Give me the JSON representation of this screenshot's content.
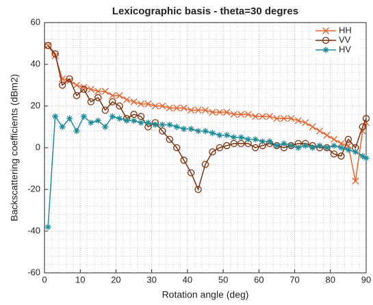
{
  "chart_data": {
    "type": "line",
    "title": "Lexicographic basis - theta=30 degres",
    "x_label": "Rotation angle (deg)",
    "y_label": "Backscattering coefficients (dBm2)",
    "x": [
      1,
      3,
      5,
      7,
      9,
      11,
      13,
      15,
      17,
      19,
      21,
      23,
      25,
      27,
      29,
      31,
      33,
      35,
      37,
      39,
      41,
      43,
      45,
      47,
      49,
      51,
      53,
      55,
      57,
      59,
      61,
      63,
      65,
      67,
      69,
      71,
      73,
      75,
      77,
      79,
      81,
      83,
      85,
      87,
      89,
      90
    ],
    "series": [
      {
        "name": "HH",
        "color": "#e8622c",
        "marker": "x",
        "values": [
          49,
          44,
          33,
          32,
          30,
          29,
          28,
          27,
          27,
          25,
          25,
          23,
          22,
          21,
          21,
          20,
          20,
          19,
          19,
          19,
          18,
          18,
          18,
          17,
          17,
          17,
          16,
          16,
          16,
          15,
          15,
          15,
          14,
          14,
          14,
          13,
          12,
          10,
          8,
          6,
          4,
          2,
          1,
          -16,
          8,
          12
        ]
      },
      {
        "name": "VV",
        "color": "#7a2e0a",
        "marker": "o",
        "values": [
          49,
          45,
          30,
          33,
          25,
          28,
          22,
          24,
          18,
          22,
          20,
          14,
          16,
          15,
          10,
          12,
          8,
          4,
          0,
          -6,
          -12,
          -20,
          -8,
          -2,
          0,
          1,
          2,
          2,
          2,
          0,
          1,
          2,
          1,
          0,
          1,
          2,
          2,
          1,
          0,
          0,
          -3,
          -4,
          4,
          0,
          10,
          14
        ]
      },
      {
        "name": "HV",
        "color": "#1f8c99",
        "marker": "*",
        "values": [
          -38,
          15,
          10,
          14,
          8,
          15,
          12,
          13,
          10,
          15,
          14,
          13,
          13,
          12,
          12,
          11,
          11,
          11,
          10,
          9,
          9,
          8,
          8,
          7,
          6,
          6,
          5,
          5,
          4,
          4,
          3,
          3,
          1,
          2,
          1,
          0,
          1,
          0,
          1,
          0,
          1,
          0,
          -1,
          -2,
          -4,
          -5
        ]
      }
    ],
    "xlim": [
      0,
      90
    ],
    "xticks": [
      0,
      10,
      20,
      30,
      40,
      50,
      60,
      70,
      80,
      90
    ],
    "ylim": [
      -60,
      60
    ],
    "yticks": [
      -60,
      -40,
      -20,
      0,
      20,
      40,
      60
    ],
    "grid": true,
    "minor_grid": true,
    "legend": "top-right"
  }
}
